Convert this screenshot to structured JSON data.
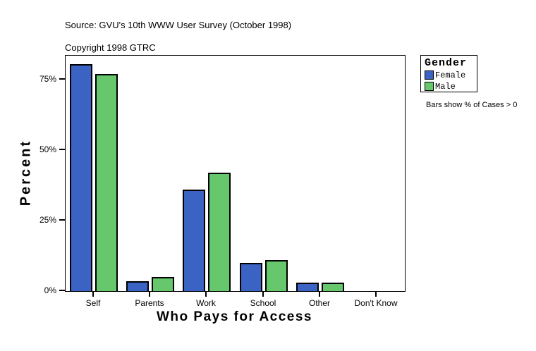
{
  "header": {
    "source_line": "Source: GVU's 10th WWW User Survey (October 1998)",
    "copyright_line": "Copyright 1998 GTRC"
  },
  "legend": {
    "title": "Gender",
    "entries": [
      {
        "label": "Female",
        "color": "#3B63C3"
      },
      {
        "label": "Male",
        "color": "#66C76C"
      }
    ]
  },
  "note": "Bars show % of Cases > 0",
  "chart_data": {
    "type": "bar",
    "title": "",
    "xlabel": "Who Pays for Access",
    "ylabel": "Percent",
    "categories": [
      "Self",
      "Parents",
      "Work",
      "School",
      "Other",
      "Don't Know"
    ],
    "series": [
      {
        "name": "Female",
        "color": "#3B63C3",
        "values": [
          80.5,
          3.5,
          36,
          10,
          3,
          0
        ]
      },
      {
        "name": "Male",
        "color": "#66C76C",
        "values": [
          77,
          5,
          42,
          11,
          3,
          0
        ]
      }
    ],
    "ylim": [
      0,
      83.5
    ],
    "yticks": [
      0,
      25,
      50,
      75
    ],
    "ytick_labels": [
      "0%",
      "25%",
      "50%",
      "75%"
    ],
    "grid": false,
    "legend_position": "right",
    "bars_shown_rule": "only values > 0 are drawn"
  }
}
